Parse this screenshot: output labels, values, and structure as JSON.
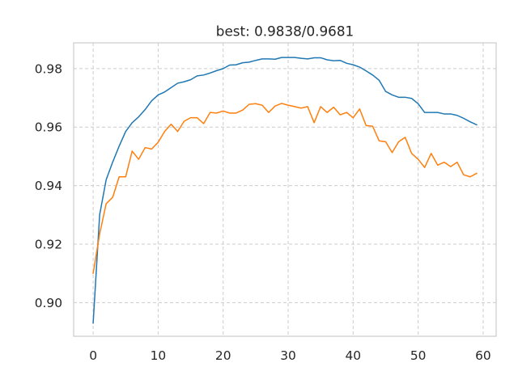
{
  "chart_data": {
    "type": "line",
    "title": "best: 0.9838/0.9681",
    "xlabel": "",
    "ylabel": "",
    "xlim": [
      -3,
      62
    ],
    "ylim": [
      0.8885,
      0.9888
    ],
    "x_ticks": [
      0,
      10,
      20,
      30,
      40,
      50,
      60
    ],
    "y_ticks": [
      0.9,
      0.92,
      0.94,
      0.96,
      0.98
    ],
    "grid": true,
    "series": [
      {
        "color": "#1f77b4",
        "x": [
          0,
          1,
          2,
          3,
          4,
          5,
          6,
          7,
          8,
          9,
          10,
          11,
          12,
          13,
          14,
          15,
          16,
          17,
          18,
          19,
          20,
          21,
          22,
          23,
          24,
          25,
          26,
          27,
          28,
          29,
          30,
          31,
          32,
          33,
          34,
          35,
          36,
          37,
          38,
          39,
          40,
          41,
          42,
          43,
          44,
          45,
          46,
          47,
          48,
          49,
          50,
          51,
          52,
          53,
          54,
          55,
          56,
          57,
          58,
          59
        ],
        "values": [
          0.893,
          0.93,
          0.942,
          0.948,
          0.9535,
          0.9585,
          0.9615,
          0.9635,
          0.966,
          0.969,
          0.971,
          0.972,
          0.9735,
          0.975,
          0.9755,
          0.9762,
          0.9775,
          0.9778,
          0.9785,
          0.9793,
          0.98,
          0.9812,
          0.9813,
          0.982,
          0.9822,
          0.9828,
          0.9833,
          0.9833,
          0.9832,
          0.9838,
          0.9838,
          0.9838,
          0.9835,
          0.9833,
          0.9837,
          0.9837,
          0.983,
          0.9827,
          0.9828,
          0.9818,
          0.9813,
          0.9805,
          0.9792,
          0.9778,
          0.976,
          0.9722,
          0.971,
          0.9702,
          0.9702,
          0.9698,
          0.968,
          0.965,
          0.965,
          0.965,
          0.9645,
          0.9645,
          0.964,
          0.963,
          0.9618,
          0.9608
        ]
      },
      {
        "color": "#ff7f0e",
        "x": [
          0,
          1,
          2,
          3,
          4,
          5,
          6,
          7,
          8,
          9,
          10,
          11,
          12,
          13,
          14,
          15,
          16,
          17,
          18,
          19,
          20,
          21,
          22,
          23,
          24,
          25,
          26,
          27,
          28,
          29,
          30,
          31,
          32,
          33,
          34,
          35,
          36,
          37,
          38,
          39,
          40,
          41,
          42,
          43,
          44,
          45,
          46,
          47,
          48,
          49,
          50,
          51,
          52,
          53,
          54,
          55,
          56,
          57,
          58,
          59
        ],
        "values": [
          0.91,
          0.9235,
          0.9338,
          0.936,
          0.943,
          0.943,
          0.9518,
          0.949,
          0.953,
          0.9525,
          0.9548,
          0.9585,
          0.961,
          0.9585,
          0.962,
          0.9632,
          0.9632,
          0.9612,
          0.965,
          0.9648,
          0.9655,
          0.9648,
          0.9648,
          0.9658,
          0.9678,
          0.968,
          0.9675,
          0.965,
          0.9672,
          0.9681,
          0.9675,
          0.967,
          0.9665,
          0.967,
          0.9615,
          0.967,
          0.965,
          0.9668,
          0.9642,
          0.965,
          0.9632,
          0.9662,
          0.9605,
          0.9603,
          0.9553,
          0.955,
          0.9513,
          0.955,
          0.9565,
          0.951,
          0.949,
          0.9462,
          0.951,
          0.947,
          0.948,
          0.9465,
          0.948,
          0.9437,
          0.943,
          0.9442
        ]
      }
    ]
  }
}
